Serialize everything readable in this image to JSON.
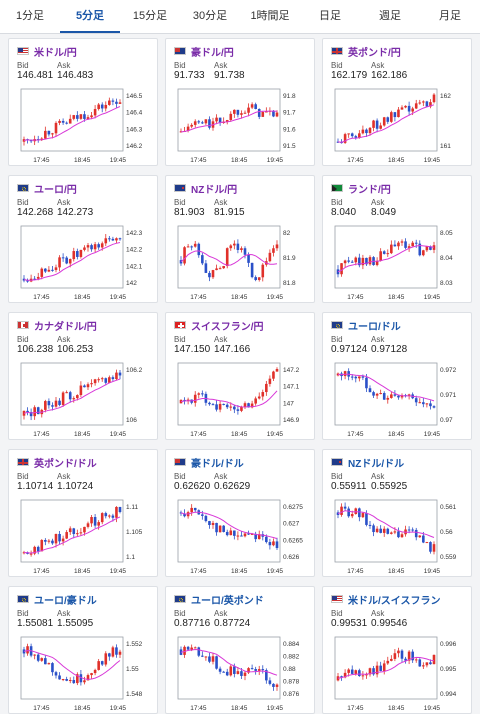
{
  "tabs": [
    {
      "label": "1分足",
      "active": false
    },
    {
      "label": "5分足",
      "active": true
    },
    {
      "label": "15分足",
      "active": false
    },
    {
      "label": "30分足",
      "active": false
    },
    {
      "label": "1時間足",
      "active": false
    },
    {
      "label": "日足",
      "active": false
    },
    {
      "label": "週足",
      "active": false
    },
    {
      "label": "月足",
      "active": false
    }
  ],
  "labels": {
    "bid": "Bid",
    "ask": "Ask"
  },
  "colors": {
    "up": "#e0302a",
    "down": "#2a50c8",
    "ma": "#d838d8"
  },
  "cards": [
    {
      "pair": "米ドル/円",
      "flag": "us",
      "pair_color": "purple",
      "bid": "146.481",
      "ask": "146.483",
      "y_ticks": [
        "146.5",
        "146.4",
        "146.3",
        "146.2"
      ],
      "x_ticks": [
        "17:45",
        "18:45",
        "19:45"
      ],
      "trend": "up"
    },
    {
      "pair": "豪ドル/円",
      "flag": "au",
      "pair_color": "purple",
      "bid": "91.733",
      "ask": "91.738",
      "y_ticks": [
        "91.8",
        "91.7",
        "91.6",
        "91.5"
      ],
      "x_ticks": [
        "17:45",
        "18:45",
        "19:45"
      ],
      "trend": "upflat"
    },
    {
      "pair": "英ポンド/円",
      "flag": "gb",
      "pair_color": "purple",
      "bid": "162.179",
      "ask": "162.186",
      "y_ticks": [
        "162",
        "161"
      ],
      "x_ticks": [
        "17:45",
        "18:45",
        "19:45"
      ],
      "trend": "up"
    },
    {
      "pair": "ユーロ/円",
      "flag": "eu",
      "pair_color": "purple",
      "bid": "142.268",
      "ask": "142.273",
      "y_ticks": [
        "142.3",
        "142.2",
        "142.1",
        "142"
      ],
      "x_ticks": [
        "17:45",
        "18:45",
        "19:45"
      ],
      "trend": "up"
    },
    {
      "pair": "NZドル/円",
      "flag": "nz",
      "pair_color": "purple",
      "bid": "81.903",
      "ask": "81.915",
      "y_ticks": [
        "82",
        "81.9",
        "81.8"
      ],
      "x_ticks": [
        "17:45",
        "18:45",
        "19:45"
      ],
      "trend": "choppy"
    },
    {
      "pair": "ランド/円",
      "flag": "za",
      "pair_color": "purple",
      "bid": "8.040",
      "ask": "8.049",
      "y_ticks": [
        "8.05",
        "8.04",
        "8.03"
      ],
      "x_ticks": [
        "17:45",
        "18:45",
        "19:45"
      ],
      "trend": "upflat"
    },
    {
      "pair": "カナダドル/円",
      "flag": "ca",
      "pair_color": "purple",
      "bid": "106.238",
      "ask": "106.253",
      "y_ticks": [
        "106.2",
        "106"
      ],
      "x_ticks": [
        "17:45",
        "18:45",
        "19:45"
      ],
      "trend": "up"
    },
    {
      "pair": "スイスフラン/円",
      "flag": "ch",
      "pair_color": "purple",
      "bid": "147.150",
      "ask": "147.166",
      "y_ticks": [
        "147.2",
        "147.1",
        "147",
        "146.9"
      ],
      "x_ticks": [
        "17:45",
        "18:45",
        "19:45"
      ],
      "trend": "upend"
    },
    {
      "pair": "ユーロ/ドル",
      "flag": "eu",
      "pair_color": "blue",
      "bid": "0.97124",
      "ask": "0.97128",
      "y_ticks": [
        "0.972",
        "0.971",
        "0.97"
      ],
      "x_ticks": [
        "17:45",
        "18:45",
        "19:45"
      ],
      "trend": "down"
    },
    {
      "pair": "英ポンド/ドル",
      "flag": "gb",
      "pair_color": "purple",
      "bid": "1.10714",
      "ask": "1.10724",
      "y_ticks": [
        "1.11",
        "1.105",
        "1.1"
      ],
      "x_ticks": [
        "17:45",
        "18:45",
        "19:45"
      ],
      "trend": "up"
    },
    {
      "pair": "豪ドル/ドル",
      "flag": "au",
      "pair_color": "blue",
      "bid": "0.62620",
      "ask": "0.62629",
      "y_ticks": [
        "0.6275",
        "0.627",
        "0.6265",
        "0.626"
      ],
      "x_ticks": [
        "17:45",
        "18:45",
        "19:45"
      ],
      "trend": "down"
    },
    {
      "pair": "NZドル/ドル",
      "flag": "nz",
      "pair_color": "blue",
      "bid": "0.55911",
      "ask": "0.55925",
      "y_ticks": [
        "0.561",
        "0.56",
        "0.559"
      ],
      "x_ticks": [
        "17:45",
        "18:45",
        "19:45"
      ],
      "trend": "down"
    },
    {
      "pair": "ユーロ/豪ドル",
      "flag": "eu",
      "pair_color": "blue",
      "bid": "1.55081",
      "ask": "1.55095",
      "y_ticks": [
        "1.552",
        "1.55",
        "1.548"
      ],
      "x_ticks": [
        "17:45",
        "18:45",
        "19:45"
      ],
      "trend": "vshape"
    },
    {
      "pair": "ユーロ/英ポンド",
      "flag": "eu",
      "pair_color": "blue",
      "bid": "0.87716",
      "ask": "0.87724",
      "y_ticks": [
        "0.884",
        "0.882",
        "0.88",
        "0.878",
        "0.876"
      ],
      "x_ticks": [
        "17:45",
        "18:45",
        "19:45"
      ],
      "trend": "down"
    },
    {
      "pair": "米ドル/スイスフラン",
      "flag": "us",
      "pair_color": "blue",
      "bid": "0.99531",
      "ask": "0.99546",
      "y_ticks": [
        "0.996",
        "0.995",
        "0.994"
      ],
      "x_ticks": [
        "17:45",
        "18:45",
        "19:45"
      ],
      "trend": "upflat"
    }
  ]
}
